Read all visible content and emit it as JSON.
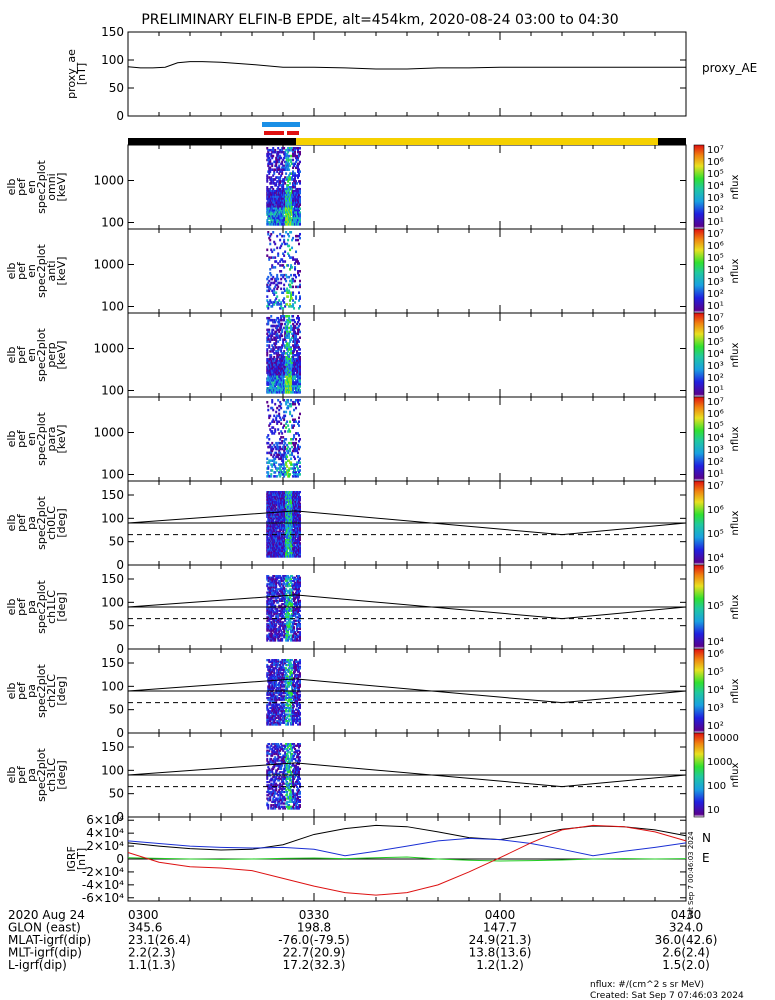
{
  "title": "PRELIMINARY ELFIN-B EPDE, alt=454km, 2020-08-24 03:00 to 04:30",
  "created": "Created: Sat Sep  7 07:46:03 2024",
  "nflux_units": "nflux: #/(cm^2 s sr MeV)",
  "side_stamp": "Sat Sep  7 00:46:03 2024",
  "grf_labels": {
    "n": "N",
    "e": "E"
  },
  "colors": {
    "ae_line": "#000000",
    "bar_black": "#000000",
    "bar_yellow": "#f5d000",
    "seg_blue": "#1a8fe6",
    "seg_red": "#e01010",
    "grf_black": "#000000",
    "grf_blue": "#1a2fd4",
    "grf_green": "#22cc22",
    "grf_red": "#dd1111"
  },
  "bottom_table": {
    "rows": [
      {
        "label": "2020 Aug 24",
        "values": [
          "0300",
          "0330",
          "0400",
          "0430"
        ]
      },
      {
        "label": "GLON (east)",
        "values": [
          "345.6",
          "198.8",
          "147.7",
          "324.0"
        ]
      },
      {
        "label": "MLAT-igrf(dip)",
        "values": [
          "23.1(26.4)",
          "-76.0(-79.5)",
          "24.9(21.3)",
          "36.0(42.6)"
        ]
      },
      {
        "label": "MLT-igrf(dip)",
        "values": [
          "2.2(2.3)",
          "22.7(20.9)",
          "13.8(13.6)",
          "2.6(2.4)"
        ]
      },
      {
        "label": "L-igrf(dip)",
        "values": [
          "1.1(1.3)",
          "17.2(32.3)",
          "1.2(1.2)",
          "1.5(2.0)"
        ]
      }
    ]
  },
  "chart_data": [
    {
      "type": "line",
      "panel": "proxy_ae",
      "ylabel": [
        "proxy_ae",
        "[nT]"
      ],
      "legend": "proxy_AE",
      "ylim": [
        0,
        150
      ],
      "yticks": [
        "0",
        "50",
        "100",
        "150"
      ],
      "x_minutes": [
        0,
        2,
        4,
        6,
        8,
        10,
        12,
        15,
        20,
        25,
        30,
        35,
        40,
        45,
        50,
        55,
        60,
        70,
        80,
        90
      ],
      "values": [
        88,
        86,
        86,
        87,
        95,
        97,
        97,
        96,
        92,
        87,
        87,
        86,
        84,
        84,
        86,
        86,
        87,
        87,
        87,
        87
      ]
    },
    {
      "type": "heatmap",
      "panel": "spec_omni",
      "ylabel": [
        "elb",
        "pef",
        "en",
        "spec2plot",
        "omni",
        "[keV]"
      ],
      "yscale": "log",
      "yticks": [
        "100",
        "1000"
      ],
      "colorbar": {
        "label": "nflux",
        "ticks": [
          "10¹",
          "10²",
          "10³",
          "10⁴",
          "10⁵",
          "10⁶",
          "10⁷"
        ]
      }
    },
    {
      "type": "heatmap",
      "panel": "spec_anti",
      "ylabel": [
        "elb",
        "pef",
        "en",
        "spec2plot",
        "anti",
        "[keV]"
      ],
      "yscale": "log",
      "yticks": [
        "100",
        "1000"
      ],
      "colorbar": {
        "label": "nflux",
        "ticks": [
          "10¹",
          "10²",
          "10³",
          "10⁴",
          "10⁵",
          "10⁶",
          "10⁷"
        ]
      }
    },
    {
      "type": "heatmap",
      "panel": "spec_perp",
      "ylabel": [
        "elb",
        "pef",
        "en",
        "spec2plot",
        "perp",
        "[keV]"
      ],
      "yscale": "log",
      "yticks": [
        "100",
        "1000"
      ],
      "colorbar": {
        "label": "nflux",
        "ticks": [
          "10¹",
          "10²",
          "10³",
          "10⁴",
          "10⁵",
          "10⁶",
          "10⁷"
        ]
      }
    },
    {
      "type": "heatmap",
      "panel": "spec_para",
      "ylabel": [
        "elb",
        "pef",
        "en",
        "spec2plot",
        "para",
        "[keV]"
      ],
      "yscale": "log",
      "yticks": [
        "100",
        "1000"
      ],
      "colorbar": {
        "label": "nflux",
        "ticks": [
          "10¹",
          "10²",
          "10³",
          "10⁴",
          "10⁵",
          "10⁶",
          "10⁷"
        ]
      }
    },
    {
      "type": "heatmap",
      "panel": "pa_ch0",
      "ylabel": [
        "elb",
        "pef",
        "pa",
        "spec2plot",
        "ch0LC",
        "[deg]"
      ],
      "ylim": [
        0,
        180
      ],
      "yticks": [
        "0",
        "50",
        "100",
        "150"
      ],
      "colorbar": {
        "label": "nflux",
        "ticks": [
          "10⁴",
          "10⁵",
          "10⁶",
          "10⁷"
        ]
      },
      "lc_line_deg": [
        90,
        116,
        65,
        90
      ],
      "flat_line_deg": 90,
      "dashed_line_deg": 65
    },
    {
      "type": "heatmap",
      "panel": "pa_ch1",
      "ylabel": [
        "elb",
        "pef",
        "pa",
        "spec2plot",
        "ch1LC",
        "[deg]"
      ],
      "ylim": [
        0,
        180
      ],
      "yticks": [
        "0",
        "50",
        "100",
        "150"
      ],
      "colorbar": {
        "label": "nflux",
        "ticks": [
          "10⁴",
          "10⁵",
          "10⁶"
        ]
      },
      "lc_line_deg": [
        90,
        116,
        65,
        90
      ],
      "flat_line_deg": 90,
      "dashed_line_deg": 65
    },
    {
      "type": "heatmap",
      "panel": "pa_ch2",
      "ylabel": [
        "elb",
        "pef",
        "pa",
        "spec2plot",
        "ch2LC",
        "[deg]"
      ],
      "ylim": [
        0,
        180
      ],
      "yticks": [
        "0",
        "50",
        "100",
        "150"
      ],
      "colorbar": {
        "label": "nflux",
        "ticks": [
          "10²",
          "10³",
          "10⁴",
          "10⁵",
          "10⁶"
        ]
      },
      "lc_line_deg": [
        90,
        116,
        65,
        90
      ],
      "flat_line_deg": 90,
      "dashed_line_deg": 65
    },
    {
      "type": "heatmap",
      "panel": "pa_ch3",
      "ylabel": [
        "elb",
        "pef",
        "pa",
        "spec2plot",
        "ch3LC",
        "[deg]"
      ],
      "ylim": [
        0,
        180
      ],
      "yticks": [
        "0",
        "50",
        "100",
        "150"
      ],
      "colorbar": {
        "label": "nflux",
        "ticks": [
          "10",
          "100",
          "1000",
          "10000"
        ]
      },
      "lc_line_deg": [
        90,
        116,
        65,
        90
      ],
      "flat_line_deg": 90,
      "dashed_line_deg": 65
    },
    {
      "type": "line",
      "panel": "igrf",
      "ylabel": [
        "IGRF",
        "[nT]"
      ],
      "ylim": [
        -65000,
        65000
      ],
      "yticks": [
        "-6×10⁴",
        "-4×10⁴",
        "-2×10⁴",
        "0",
        "2×10⁴",
        "4×10⁴",
        "6×10⁴"
      ],
      "x_minutes": [
        0,
        5,
        10,
        15,
        20,
        25,
        30,
        35,
        40,
        45,
        50,
        55,
        60,
        65,
        70,
        75,
        80,
        85,
        90
      ],
      "series": [
        {
          "name": "N",
          "values": [
            25000,
            20000,
            16000,
            14000,
            15000,
            22000,
            38000,
            47000,
            52000,
            50000,
            42000,
            33000,
            30000,
            38000,
            46000,
            51000,
            50000,
            45000,
            36000
          ]
        },
        {
          "name": "",
          "values": [
            28000,
            24000,
            20000,
            18000,
            17000,
            18000,
            15000,
            5000,
            12000,
            20000,
            28000,
            32000,
            30000,
            24000,
            15000,
            5000,
            12000,
            18000,
            25000
          ]
        },
        {
          "name": "E",
          "values": [
            2000,
            1000,
            0,
            -500,
            0,
            1000,
            1500,
            500,
            2000,
            3000,
            0,
            -2000,
            -3000,
            -2500,
            -1500,
            0,
            500,
            0,
            500
          ]
        },
        {
          "name": "",
          "values": [
            10000,
            -5000,
            -12000,
            -14000,
            -18000,
            -30000,
            -42000,
            -52000,
            -56000,
            -52000,
            -40000,
            -20000,
            2000,
            25000,
            45000,
            52000,
            50000,
            42000,
            28000
          ]
        }
      ]
    }
  ]
}
